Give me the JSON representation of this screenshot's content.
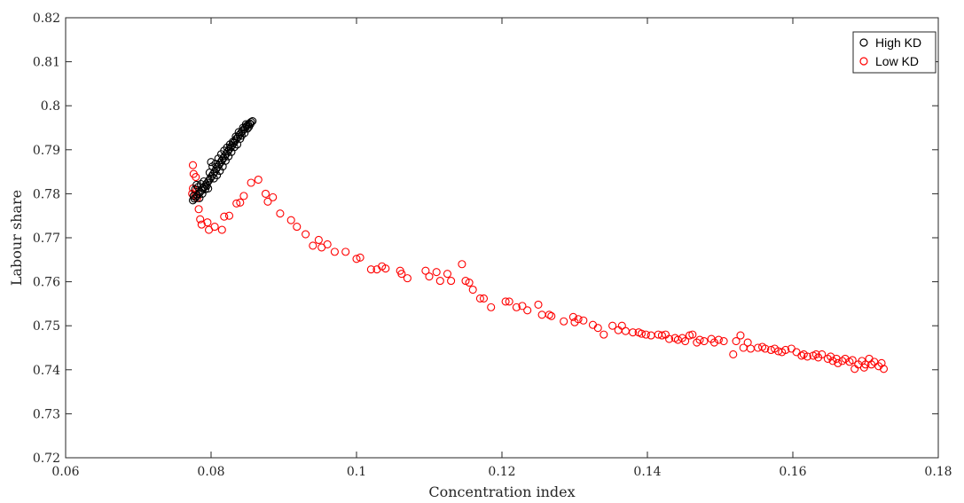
{
  "chart_data": {
    "type": "scatter",
    "title": "",
    "xlabel": "Concentration index",
    "ylabel": "Labour share",
    "xlim": [
      0.06,
      0.18
    ],
    "ylim": [
      0.72,
      0.82
    ],
    "xticks": [
      "0.06",
      "0.08",
      "0.1",
      "0.12",
      "0.14",
      "0.16",
      "0.18"
    ],
    "yticks": [
      "0.72",
      "0.73",
      "0.74",
      "0.75",
      "0.76",
      "0.77",
      "0.78",
      "0.79",
      "0.8",
      "0.81",
      "0.82"
    ],
    "grid": false,
    "legend_position": "top-right",
    "series": [
      {
        "name": "High KD",
        "color": "#000000",
        "marker": "circle-open",
        "points": [
          [
            0.0775,
            0.7785
          ],
          [
            0.0777,
            0.7789
          ],
          [
            0.0779,
            0.7792
          ],
          [
            0.0781,
            0.7796
          ],
          [
            0.0783,
            0.78
          ],
          [
            0.0785,
            0.7804
          ],
          [
            0.0787,
            0.7808
          ],
          [
            0.0789,
            0.7812
          ],
          [
            0.0791,
            0.7816
          ],
          [
            0.0793,
            0.7821
          ],
          [
            0.0795,
            0.7825
          ],
          [
            0.0797,
            0.783
          ],
          [
            0.0799,
            0.7835
          ],
          [
            0.0801,
            0.784
          ],
          [
            0.0803,
            0.7845
          ],
          [
            0.0805,
            0.785
          ],
          [
            0.0807,
            0.7856
          ],
          [
            0.0809,
            0.7861
          ],
          [
            0.0811,
            0.7866
          ],
          [
            0.0813,
            0.7871
          ],
          [
            0.0815,
            0.7876
          ],
          [
            0.0817,
            0.7881
          ],
          [
            0.0819,
            0.7886
          ],
          [
            0.0821,
            0.7891
          ],
          [
            0.0823,
            0.7896
          ],
          [
            0.0825,
            0.7901
          ],
          [
            0.0827,
            0.7906
          ],
          [
            0.0829,
            0.791
          ],
          [
            0.0831,
            0.7915
          ],
          [
            0.0833,
            0.792
          ],
          [
            0.0835,
            0.7925
          ],
          [
            0.0837,
            0.7929
          ],
          [
            0.0839,
            0.7934
          ],
          [
            0.0841,
            0.7938
          ],
          [
            0.0843,
            0.7942
          ],
          [
            0.0845,
            0.7946
          ],
          [
            0.0847,
            0.795
          ],
          [
            0.0849,
            0.7954
          ],
          [
            0.0851,
            0.7957
          ],
          [
            0.0853,
            0.796
          ],
          [
            0.0855,
            0.7963
          ],
          [
            0.0857,
            0.7965
          ],
          [
            0.0778,
            0.781
          ],
          [
            0.078,
            0.782
          ],
          [
            0.0782,
            0.7815
          ],
          [
            0.0786,
            0.7822
          ],
          [
            0.079,
            0.7828
          ],
          [
            0.0794,
            0.7818
          ],
          [
            0.0798,
            0.7848
          ],
          [
            0.08,
            0.7872
          ],
          [
            0.0802,
            0.7862
          ],
          [
            0.0804,
            0.7835
          ],
          [
            0.0806,
            0.7868
          ],
          [
            0.0808,
            0.7842
          ],
          [
            0.081,
            0.788
          ],
          [
            0.0812,
            0.7852
          ],
          [
            0.0814,
            0.789
          ],
          [
            0.0816,
            0.7862
          ],
          [
            0.0818,
            0.7898
          ],
          [
            0.082,
            0.7875
          ],
          [
            0.0822,
            0.7905
          ],
          [
            0.0824,
            0.7885
          ],
          [
            0.0826,
            0.7912
          ],
          [
            0.0828,
            0.7895
          ],
          [
            0.083,
            0.7918
          ],
          [
            0.0832,
            0.7906
          ],
          [
            0.0834,
            0.793
          ],
          [
            0.0836,
            0.7912
          ],
          [
            0.0838,
            0.794
          ],
          [
            0.084,
            0.7925
          ],
          [
            0.0842,
            0.7932
          ],
          [
            0.0844,
            0.795
          ],
          [
            0.0846,
            0.7938
          ],
          [
            0.0848,
            0.7958
          ],
          [
            0.085,
            0.7948
          ],
          [
            0.0852,
            0.7952
          ],
          [
            0.0854,
            0.7958
          ],
          [
            0.0776,
            0.7795
          ],
          [
            0.0784,
            0.779
          ],
          [
            0.0788,
            0.78
          ],
          [
            0.0792,
            0.781
          ],
          [
            0.0796,
            0.7812
          ]
        ]
      },
      {
        "name": "Low KD",
        "color": "#ff0000",
        "marker": "circle-open",
        "points": [
          [
            0.0775,
            0.7865
          ],
          [
            0.0776,
            0.7845
          ],
          [
            0.0775,
            0.7812
          ],
          [
            0.0774,
            0.78
          ],
          [
            0.0778,
            0.7795
          ],
          [
            0.0779,
            0.7838
          ],
          [
            0.078,
            0.7808
          ],
          [
            0.0781,
            0.779
          ],
          [
            0.0783,
            0.7765
          ],
          [
            0.0785,
            0.7742
          ],
          [
            0.0787,
            0.773
          ],
          [
            0.0795,
            0.7735
          ],
          [
            0.0797,
            0.7718
          ],
          [
            0.0805,
            0.7725
          ],
          [
            0.0815,
            0.7718
          ],
          [
            0.0818,
            0.7748
          ],
          [
            0.0825,
            0.775
          ],
          [
            0.0835,
            0.7778
          ],
          [
            0.084,
            0.778
          ],
          [
            0.0845,
            0.7795
          ],
          [
            0.0855,
            0.7825
          ],
          [
            0.0865,
            0.7832
          ],
          [
            0.0875,
            0.78
          ],
          [
            0.0878,
            0.7782
          ],
          [
            0.0885,
            0.7792
          ],
          [
            0.0895,
            0.7755
          ],
          [
            0.091,
            0.774
          ],
          [
            0.0918,
            0.7725
          ],
          [
            0.093,
            0.7708
          ],
          [
            0.094,
            0.7682
          ],
          [
            0.0948,
            0.7695
          ],
          [
            0.0952,
            0.7678
          ],
          [
            0.096,
            0.7685
          ],
          [
            0.097,
            0.7668
          ],
          [
            0.0985,
            0.7668
          ],
          [
            0.1,
            0.7652
          ],
          [
            0.1005,
            0.7655
          ],
          [
            0.102,
            0.7628
          ],
          [
            0.1028,
            0.7628
          ],
          [
            0.1035,
            0.7635
          ],
          [
            0.104,
            0.763
          ],
          [
            0.106,
            0.7625
          ],
          [
            0.1062,
            0.7618
          ],
          [
            0.107,
            0.7608
          ],
          [
            0.1095,
            0.7625
          ],
          [
            0.11,
            0.7612
          ],
          [
            0.111,
            0.7622
          ],
          [
            0.1115,
            0.7602
          ],
          [
            0.1125,
            0.7618
          ],
          [
            0.113,
            0.7602
          ],
          [
            0.1145,
            0.764
          ],
          [
            0.115,
            0.7602
          ],
          [
            0.1155,
            0.7598
          ],
          [
            0.116,
            0.7582
          ],
          [
            0.117,
            0.7562
          ],
          [
            0.1175,
            0.7562
          ],
          [
            0.1185,
            0.7542
          ],
          [
            0.1205,
            0.7555
          ],
          [
            0.121,
            0.7555
          ],
          [
            0.122,
            0.7542
          ],
          [
            0.1228,
            0.7545
          ],
          [
            0.1235,
            0.7535
          ],
          [
            0.125,
            0.7548
          ],
          [
            0.1255,
            0.7525
          ],
          [
            0.1265,
            0.7525
          ],
          [
            0.1268,
            0.7522
          ],
          [
            0.1285,
            0.751
          ],
          [
            0.1298,
            0.752
          ],
          [
            0.13,
            0.7508
          ],
          [
            0.1305,
            0.7515
          ],
          [
            0.1312,
            0.7512
          ],
          [
            0.1325,
            0.7502
          ],
          [
            0.1332,
            0.7495
          ],
          [
            0.134,
            0.748
          ],
          [
            0.1352,
            0.75
          ],
          [
            0.136,
            0.749
          ],
          [
            0.1365,
            0.75
          ],
          [
            0.137,
            0.7488
          ],
          [
            0.138,
            0.7485
          ],
          [
            0.1388,
            0.7485
          ],
          [
            0.1392,
            0.7482
          ],
          [
            0.1398,
            0.748
          ],
          [
            0.1405,
            0.7478
          ],
          [
            0.1415,
            0.748
          ],
          [
            0.142,
            0.7478
          ],
          [
            0.1425,
            0.748
          ],
          [
            0.143,
            0.747
          ],
          [
            0.1438,
            0.7472
          ],
          [
            0.1442,
            0.7468
          ],
          [
            0.1448,
            0.7472
          ],
          [
            0.1452,
            0.7465
          ],
          [
            0.1458,
            0.7478
          ],
          [
            0.1462,
            0.748
          ],
          [
            0.1468,
            0.7462
          ],
          [
            0.1472,
            0.7468
          ],
          [
            0.1478,
            0.7465
          ],
          [
            0.1488,
            0.747
          ],
          [
            0.1492,
            0.7462
          ],
          [
            0.1498,
            0.7468
          ],
          [
            0.1505,
            0.7465
          ],
          [
            0.1518,
            0.7435
          ],
          [
            0.1522,
            0.7465
          ],
          [
            0.1528,
            0.7478
          ],
          [
            0.1532,
            0.745
          ],
          [
            0.1538,
            0.7462
          ],
          [
            0.1542,
            0.7448
          ],
          [
            0.1552,
            0.745
          ],
          [
            0.1558,
            0.7452
          ],
          [
            0.1562,
            0.7448
          ],
          [
            0.157,
            0.7445
          ],
          [
            0.1575,
            0.7448
          ],
          [
            0.158,
            0.7442
          ],
          [
            0.1585,
            0.744
          ],
          [
            0.159,
            0.7445
          ],
          [
            0.1598,
            0.7448
          ],
          [
            0.1605,
            0.744
          ],
          [
            0.1612,
            0.7432
          ],
          [
            0.1615,
            0.7435
          ],
          [
            0.162,
            0.743
          ],
          [
            0.1628,
            0.7432
          ],
          [
            0.1632,
            0.7435
          ],
          [
            0.1635,
            0.7428
          ],
          [
            0.164,
            0.7435
          ],
          [
            0.1648,
            0.7425
          ],
          [
            0.1652,
            0.743
          ],
          [
            0.1655,
            0.742
          ],
          [
            0.166,
            0.7425
          ],
          [
            0.1662,
            0.7415
          ],
          [
            0.1668,
            0.742
          ],
          [
            0.1672,
            0.7425
          ],
          [
            0.1678,
            0.7418
          ],
          [
            0.1682,
            0.7422
          ],
          [
            0.1685,
            0.7402
          ],
          [
            0.169,
            0.7412
          ],
          [
            0.1695,
            0.742
          ],
          [
            0.1698,
            0.7405
          ],
          [
            0.17,
            0.7412
          ],
          [
            0.1705,
            0.7425
          ],
          [
            0.1708,
            0.7412
          ],
          [
            0.1712,
            0.7418
          ],
          [
            0.1718,
            0.7408
          ],
          [
            0.1722,
            0.7415
          ],
          [
            0.1725,
            0.7402
          ]
        ]
      }
    ]
  }
}
